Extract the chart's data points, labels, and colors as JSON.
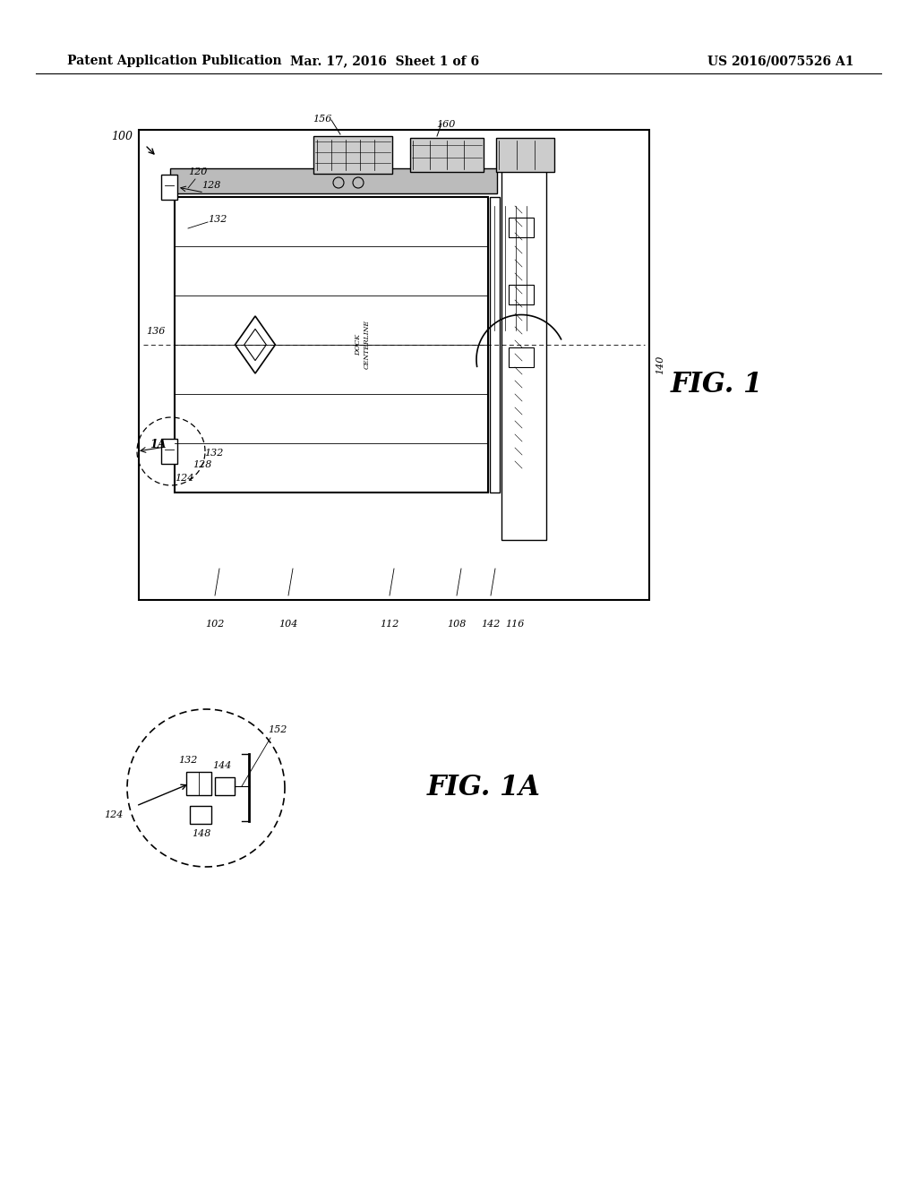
{
  "bg_color": "#ffffff",
  "header_left": "Patent Application Publication",
  "header_center": "Mar. 17, 2016  Sheet 1 of 6",
  "header_right": "US 2016/0075526 A1",
  "fig1_label": "FIG. 1",
  "fig1a_label": "FIG. 1A"
}
